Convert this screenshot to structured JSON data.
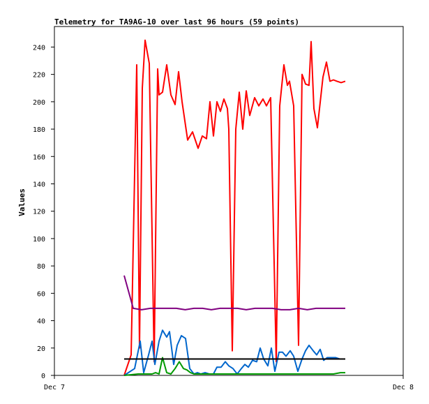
{
  "chart_data": {
    "type": "line",
    "title": "Telemetry for TA9AG-10 over last 96 hours (59 points)",
    "ylabel": "Values",
    "xlabel": "",
    "ylim": [
      0,
      255
    ],
    "y_ticks": [
      "0",
      "20",
      "40",
      "60",
      "80",
      "100",
      "120",
      "140",
      "160",
      "180",
      "200",
      "220",
      "240"
    ],
    "x_ticks": [
      "Dec 7",
      "Dec 8"
    ],
    "grid": false,
    "legend": "none",
    "series": [
      {
        "color": "#ff0000",
        "x": [
          0.2,
          0.22,
          0.236,
          0.244,
          0.252,
          0.26,
          0.272,
          0.286,
          0.296,
          0.3,
          0.31,
          0.322,
          0.334,
          0.346,
          0.356,
          0.366,
          0.382,
          0.396,
          0.412,
          0.424,
          0.436,
          0.446,
          0.456,
          0.466,
          0.476,
          0.486,
          0.496,
          0.5,
          0.51,
          0.52,
          0.53,
          0.54,
          0.55,
          0.56,
          0.574,
          0.586,
          0.598,
          0.608,
          0.62,
          0.636,
          0.646,
          0.658,
          0.668,
          0.674,
          0.686,
          0.7,
          0.71,
          0.72,
          0.73,
          0.736,
          0.744,
          0.754,
          0.77,
          0.78,
          0.79,
          0.8,
          0.81,
          0.822,
          0.834
        ],
        "values": [
          0,
          15,
          227,
          20,
          210,
          245,
          228,
          10,
          224,
          205,
          207,
          227,
          205,
          198,
          222,
          200,
          172,
          178,
          166,
          175,
          173,
          200,
          175,
          200,
          193,
          202,
          195,
          180,
          18,
          180,
          207,
          180,
          208,
          190,
          203,
          197,
          202,
          197,
          203,
          10,
          197,
          227,
          212,
          215,
          197,
          22,
          220,
          213,
          212,
          244,
          195,
          181,
          218,
          229,
          215,
          216,
          215,
          214,
          215
        ]
      },
      {
        "color": "#800080",
        "x": [
          0.2,
          0.226,
          0.25,
          0.275,
          0.3,
          0.325,
          0.35,
          0.375,
          0.4,
          0.425,
          0.45,
          0.475,
          0.5,
          0.525,
          0.55,
          0.575,
          0.6,
          0.625,
          0.65,
          0.675,
          0.7,
          0.725,
          0.75,
          0.775,
          0.8,
          0.834
        ],
        "values": [
          73,
          49,
          48,
          49,
          49,
          49,
          49,
          48,
          49,
          49,
          48,
          49,
          49,
          49,
          48,
          49,
          49,
          49,
          48,
          48,
          49,
          48,
          49,
          49,
          49,
          49
        ]
      },
      {
        "color": "#0066cc",
        "x": [
          0.2,
          0.23,
          0.246,
          0.256,
          0.27,
          0.28,
          0.288,
          0.3,
          0.31,
          0.322,
          0.33,
          0.342,
          0.352,
          0.364,
          0.376,
          0.388,
          0.4,
          0.41,
          0.42,
          0.432,
          0.444,
          0.456,
          0.466,
          0.478,
          0.49,
          0.5,
          0.512,
          0.524,
          0.536,
          0.546,
          0.556,
          0.568,
          0.58,
          0.59,
          0.6,
          0.612,
          0.622,
          0.632,
          0.644,
          0.654,
          0.664,
          0.676,
          0.686,
          0.698,
          0.71,
          0.72,
          0.73,
          0.742,
          0.752,
          0.762,
          0.772,
          0.782,
          0.794,
          0.806,
          0.818,
          0.834
        ],
        "values": [
          0,
          5,
          25,
          2,
          15,
          25,
          8,
          25,
          33,
          28,
          32,
          8,
          22,
          29,
          27,
          5,
          1,
          2,
          1,
          2,
          1,
          1,
          6,
          6,
          10,
          7,
          5,
          1,
          5,
          8,
          6,
          11,
          10,
          20,
          12,
          7,
          20,
          3,
          17,
          17,
          14,
          18,
          14,
          3,
          12,
          18,
          22,
          18,
          15,
          19,
          11,
          13,
          13,
          13,
          12,
          12
        ]
      },
      {
        "color": "#009900",
        "x": [
          0.2,
          0.24,
          0.26,
          0.28,
          0.29,
          0.3,
          0.31,
          0.322,
          0.334,
          0.346,
          0.358,
          0.37,
          0.38,
          0.39,
          0.4,
          0.42,
          0.44,
          0.46,
          0.48,
          0.5,
          0.52,
          0.54,
          0.56,
          0.58,
          0.6,
          0.62,
          0.64,
          0.66,
          0.68,
          0.7,
          0.72,
          0.74,
          0.76,
          0.78,
          0.8,
          0.82,
          0.834
        ],
        "values": [
          0,
          1,
          1,
          1,
          2,
          1,
          13,
          2,
          1,
          5,
          10,
          5,
          4,
          2,
          1,
          1,
          1,
          1,
          1,
          1,
          1,
          1,
          1,
          1,
          1,
          1,
          1,
          1,
          1,
          1,
          1,
          1,
          1,
          1,
          1,
          2,
          2
        ]
      },
      {
        "color": "#000000",
        "x": [
          0.2,
          0.834
        ],
        "values": [
          12,
          12
        ]
      }
    ]
  }
}
